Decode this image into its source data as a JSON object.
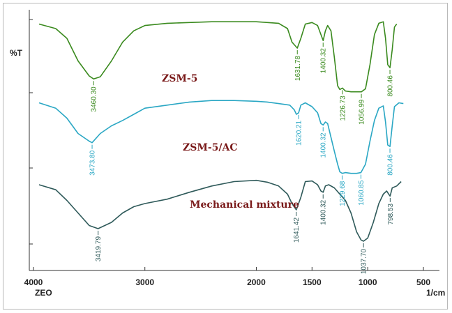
{
  "chart_data": {
    "type": "line",
    "ylabel": "%T",
    "xlabel_left": "ZEO",
    "xlabel_unit": "1/cm",
    "xlim": [
      4000,
      400
    ],
    "x_ticks": [
      4000,
      3000,
      2000,
      1500,
      1000,
      500
    ],
    "grid": false,
    "series": [
      {
        "name": "ZSM-5",
        "color": "#3a8a1e",
        "points": [
          [
            3950,
            0.06
          ],
          [
            3800,
            0.12
          ],
          [
            3700,
            0.25
          ],
          [
            3600,
            0.55
          ],
          [
            3500,
            0.75
          ],
          [
            3460,
            0.79
          ],
          [
            3400,
            0.76
          ],
          [
            3300,
            0.55
          ],
          [
            3200,
            0.3
          ],
          [
            3100,
            0.15
          ],
          [
            3000,
            0.08
          ],
          [
            2800,
            0.05
          ],
          [
            2600,
            0.04
          ],
          [
            2400,
            0.03
          ],
          [
            2200,
            0.03
          ],
          [
            2000,
            0.03
          ],
          [
            1900,
            0.04
          ],
          [
            1800,
            0.05
          ],
          [
            1720,
            0.12
          ],
          [
            1680,
            0.3
          ],
          [
            1632,
            0.38
          ],
          [
            1600,
            0.25
          ],
          [
            1560,
            0.06
          ],
          [
            1500,
            0.04
          ],
          [
            1450,
            0.08
          ],
          [
            1420,
            0.2
          ],
          [
            1400,
            0.28
          ],
          [
            1380,
            0.15
          ],
          [
            1360,
            0.08
          ],
          [
            1330,
            0.15
          ],
          [
            1300,
            0.5
          ],
          [
            1270,
            0.88
          ],
          [
            1250,
            0.93
          ],
          [
            1227,
            0.91
          ],
          [
            1200,
            0.95
          ],
          [
            1150,
            0.96
          ],
          [
            1100,
            0.96
          ],
          [
            1057,
            0.96
          ],
          [
            1020,
            0.92
          ],
          [
            980,
            0.6
          ],
          [
            940,
            0.2
          ],
          [
            900,
            0.05
          ],
          [
            860,
            0.03
          ],
          [
            840,
            0.25
          ],
          [
            820,
            0.6
          ],
          [
            800,
            0.64
          ],
          [
            780,
            0.4
          ],
          [
            760,
            0.1
          ],
          [
            740,
            0.06
          ]
        ],
        "peaks": [
          {
            "x": 3460.3,
            "label": "3460.30"
          },
          {
            "x": 1631.78,
            "label": "1631.78"
          },
          {
            "x": 1400.32,
            "label": "1400.32"
          },
          {
            "x": 1226.73,
            "label": "1226.73"
          },
          {
            "x": 1056.99,
            "label": "1056.99"
          },
          {
            "x": 800.46,
            "label": "800.46"
          }
        ]
      },
      {
        "name": "ZSM-5/AC",
        "color": "#2aa7c4",
        "points": [
          [
            3950,
            0.05
          ],
          [
            3800,
            0.12
          ],
          [
            3700,
            0.25
          ],
          [
            3600,
            0.45
          ],
          [
            3500,
            0.55
          ],
          [
            3474,
            0.57
          ],
          [
            3400,
            0.45
          ],
          [
            3300,
            0.35
          ],
          [
            3200,
            0.28
          ],
          [
            3100,
            0.2
          ],
          [
            3000,
            0.12
          ],
          [
            2800,
            0.08
          ],
          [
            2600,
            0.04
          ],
          [
            2400,
            0.02
          ],
          [
            2200,
            0.02
          ],
          [
            2000,
            0.03
          ],
          [
            1900,
            0.04
          ],
          [
            1800,
            0.06
          ],
          [
            1700,
            0.08
          ],
          [
            1660,
            0.14
          ],
          [
            1640,
            0.2
          ],
          [
            1620,
            0.18
          ],
          [
            1600,
            0.08
          ],
          [
            1560,
            0.05
          ],
          [
            1500,
            0.1
          ],
          [
            1450,
            0.18
          ],
          [
            1420,
            0.32
          ],
          [
            1400,
            0.34
          ],
          [
            1380,
            0.3
          ],
          [
            1360,
            0.32
          ],
          [
            1330,
            0.5
          ],
          [
            1300,
            0.68
          ],
          [
            1270,
            0.85
          ],
          [
            1250,
            0.95
          ],
          [
            1229,
            0.97
          ],
          [
            1200,
            0.96
          ],
          [
            1150,
            0.97
          ],
          [
            1100,
            0.97
          ],
          [
            1061,
            0.96
          ],
          [
            1020,
            0.85
          ],
          [
            980,
            0.55
          ],
          [
            940,
            0.28
          ],
          [
            900,
            0.12
          ],
          [
            860,
            0.09
          ],
          [
            840,
            0.3
          ],
          [
            820,
            0.6
          ],
          [
            800,
            0.62
          ],
          [
            780,
            0.35
          ],
          [
            760,
            0.1
          ],
          [
            720,
            0.05
          ],
          [
            680,
            0.06
          ]
        ],
        "peaks": [
          {
            "x": 3473.8,
            "label": "3473.80"
          },
          {
            "x": 1620.21,
            "label": "1620.21"
          },
          {
            "x": 1400.32,
            "label": "1400.32"
          },
          {
            "x": 1229.68,
            "label": "1229.68"
          },
          {
            "x": 1060.85,
            "label": "1060.85"
          },
          {
            "x": 800.46,
            "label": "800.46"
          }
        ]
      },
      {
        "name": "Mechanical mixture",
        "color": "#2f5a5a",
        "points": [
          [
            3950,
            0.1
          ],
          [
            3800,
            0.18
          ],
          [
            3700,
            0.35
          ],
          [
            3600,
            0.55
          ],
          [
            3500,
            0.75
          ],
          [
            3420,
            0.8
          ],
          [
            3300,
            0.7
          ],
          [
            3200,
            0.55
          ],
          [
            3100,
            0.45
          ],
          [
            3000,
            0.4
          ],
          [
            2800,
            0.33
          ],
          [
            2600,
            0.22
          ],
          [
            2400,
            0.12
          ],
          [
            2200,
            0.05
          ],
          [
            2000,
            0.03
          ],
          [
            1900,
            0.06
          ],
          [
            1800,
            0.12
          ],
          [
            1720,
            0.25
          ],
          [
            1680,
            0.4
          ],
          [
            1641,
            0.5
          ],
          [
            1600,
            0.3
          ],
          [
            1560,
            0.05
          ],
          [
            1500,
            0.04
          ],
          [
            1450,
            0.1
          ],
          [
            1420,
            0.2
          ],
          [
            1400,
            0.22
          ],
          [
            1380,
            0.12
          ],
          [
            1350,
            0.1
          ],
          [
            1300,
            0.15
          ],
          [
            1250,
            0.25
          ],
          [
            1200,
            0.35
          ],
          [
            1150,
            0.55
          ],
          [
            1100,
            0.85
          ],
          [
            1060,
            0.98
          ],
          [
            1038,
            1.0
          ],
          [
            1000,
            0.95
          ],
          [
            950,
            0.7
          ],
          [
            900,
            0.4
          ],
          [
            860,
            0.25
          ],
          [
            830,
            0.2
          ],
          [
            800,
            0.28
          ],
          [
            799,
            0.28
          ],
          [
            780,
            0.15
          ],
          [
            740,
            0.12
          ],
          [
            700,
            0.05
          ]
        ],
        "peaks": [
          {
            "x": 3419.79,
            "label": "3419.79"
          },
          {
            "x": 1641.42,
            "label": "1641.42"
          },
          {
            "x": 1400.32,
            "label": "1400.32"
          },
          {
            "x": 1037.7,
            "label": "1037.70"
          },
          {
            "x": 798.53,
            "label": "798.53"
          }
        ]
      }
    ]
  }
}
